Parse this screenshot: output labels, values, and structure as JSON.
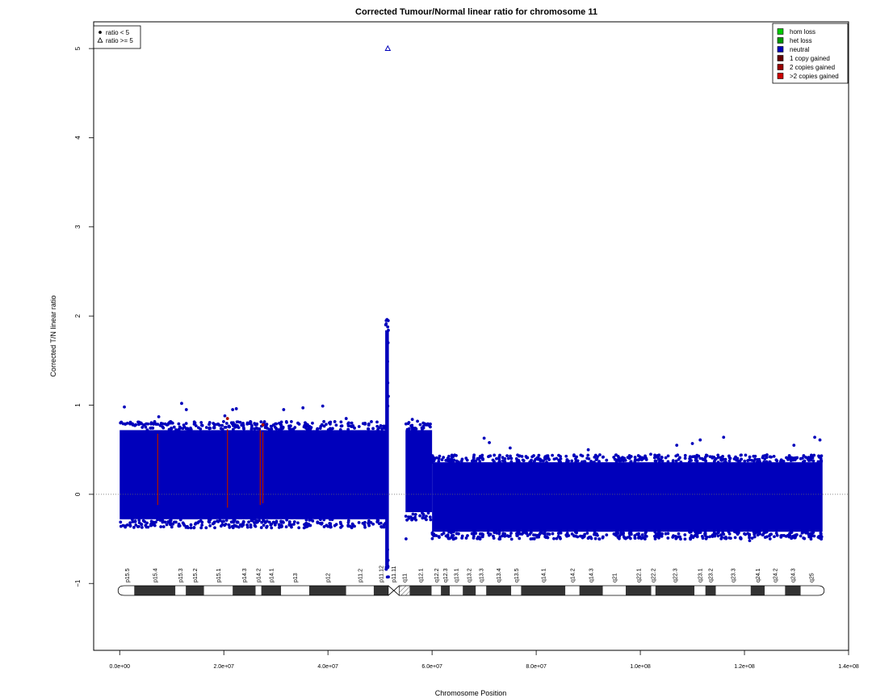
{
  "chart_data": {
    "type": "scatter",
    "title": "Corrected Tumour/Normal linear ratio for chromosome  11",
    "xlabel": "Chromosome Position",
    "ylabel": "Corrected T/N linear ratio",
    "xlim": [
      -5000000,
      140000000
    ],
    "ylim": [
      -1.75,
      5.3
    ],
    "x_ticks": [
      {
        "value": 0,
        "label": "0.0e+00"
      },
      {
        "value": 20000000,
        "label": "2.0e+07"
      },
      {
        "value": 40000000,
        "label": "4.0e+07"
      },
      {
        "value": 60000000,
        "label": "6.0e+07"
      },
      {
        "value": 80000000,
        "label": "8.0e+07"
      },
      {
        "value": 100000000,
        "label": "1.0e+08"
      },
      {
        "value": 120000000,
        "label": "1.2e+08"
      },
      {
        "value": 140000000,
        "label": "1.4e+08"
      }
    ],
    "y_ticks": [
      {
        "value": -1,
        "label": "−1"
      },
      {
        "value": 0,
        "label": "0"
      },
      {
        "value": 1,
        "label": "1"
      },
      {
        "value": 2,
        "label": "2"
      },
      {
        "value": 3,
        "label": "3"
      },
      {
        "value": 4,
        "label": "4"
      },
      {
        "value": 5,
        "label": "5"
      }
    ],
    "reference_line_y": 0,
    "shape_legend": {
      "position": "top-left",
      "entries": [
        {
          "label": "ratio < 5",
          "shape": "circle"
        },
        {
          "label": "ratio >= 5",
          "shape": "triangle"
        }
      ]
    },
    "state_legend": {
      "position": "top-right",
      "entries": [
        {
          "label": "hom loss",
          "color": "#00cc00"
        },
        {
          "label": "het loss",
          "color": "#009900"
        },
        {
          "label": "neutral",
          "color": "#0000bb"
        },
        {
          "label": "1 copy gained",
          "color": "#660000"
        },
        {
          "label": "2 copies gained",
          "color": "#990000"
        },
        {
          "label": ">2 copies gained",
          "color": "#cc0000"
        }
      ]
    },
    "series": [
      {
        "state": "neutral",
        "color": "#0000bb",
        "segments": [
          {
            "start": 0,
            "end": 51500000,
            "min": -0.28,
            "max": 0.72,
            "points": [
              [
                900000,
                0.98
              ],
              [
                11900000,
                1.02
              ],
              [
                12800000,
                0.95
              ],
              [
                20200000,
                0.88
              ],
              [
                21700000,
                0.95
              ],
              [
                22400000,
                0.96
              ],
              [
                26300000,
                0.78
              ],
              [
                31500000,
                0.95
              ],
              [
                35200000,
                0.97
              ],
              [
                39000000,
                0.99
              ],
              [
                43500000,
                0.85
              ],
              [
                7500000,
                0.87
              ],
              [
                3000000,
                -0.3
              ],
              [
                15000000,
                -0.32
              ],
              [
                40000000,
                -0.36
              ]
            ]
          },
          {
            "start": 51000000,
            "end": 51700000,
            "min": -0.8,
            "max": 1.84,
            "points": [
              [
                51600000,
                1.84
              ],
              [
                51550000,
                1.7
              ],
              [
                51450000,
                1.49
              ],
              [
                51500000,
                1.25
              ],
              [
                51600000,
                1.1
              ],
              [
                51500000,
                0.99
              ],
              [
                51450000,
                -0.62
              ],
              [
                51550000,
                -0.74
              ],
              [
                51500000,
                -0.82
              ]
            ]
          },
          {
            "start": 54900000,
            "end": 60000000,
            "min": -0.2,
            "max": 0.72,
            "points": [
              [
                56200000,
                0.84
              ],
              [
                57200000,
                0.82
              ],
              [
                58300000,
                0.8
              ],
              [
                59200000,
                0.79
              ],
              [
                55000000,
                -0.5
              ]
            ]
          },
          {
            "start": 60000000,
            "end": 135000000,
            "min": -0.42,
            "max": 0.36,
            "points": [
              [
                70000000,
                0.63
              ],
              [
                71000000,
                0.58
              ],
              [
                75000000,
                0.52
              ],
              [
                90000000,
                0.5
              ],
              [
                102000000,
                0.45
              ],
              [
                107000000,
                0.55
              ],
              [
                110000000,
                0.57
              ],
              [
                111500000,
                0.61
              ],
              [
                116000000,
                0.64
              ],
              [
                129500000,
                0.55
              ],
              [
                133500000,
                0.64
              ],
              [
                134500000,
                0.61
              ],
              [
                73000000,
                -0.5
              ],
              [
                97000000,
                -0.49
              ],
              [
                121000000,
                -0.52
              ]
            ]
          }
        ]
      },
      {
        "state": "1 copy gained",
        "color": "#aa1100",
        "columns": [
          {
            "x": 7300000,
            "min": -0.12,
            "max": 0.68
          },
          {
            "x": 20700000,
            "min": -0.15,
            "max": 0.73,
            "top": 0.85
          },
          {
            "x": 27000000,
            "min": -0.12,
            "max": 0.72
          },
          {
            "x": 27500000,
            "min": -0.1,
            "max": 0.7,
            "top": 0.78
          }
        ]
      }
    ],
    "outliers": [
      {
        "x": 51500000,
        "y": 5,
        "shape": "triangle",
        "state": "neutral"
      }
    ],
    "ideogram": {
      "centromere": 51500000,
      "bands": [
        {
          "name": "p15.5",
          "start": 0,
          "end": 2800000,
          "stain": "gneg"
        },
        {
          "name": "p15.4",
          "start": 2800000,
          "end": 10700000,
          "stain": "gpos"
        },
        {
          "name": "p15.3",
          "start": 10700000,
          "end": 12700000,
          "stain": "gneg"
        },
        {
          "name": "p15.2",
          "start": 12700000,
          "end": 16200000,
          "stain": "gpos"
        },
        {
          "name": "p15.1",
          "start": 16200000,
          "end": 21700000,
          "stain": "gneg"
        },
        {
          "name": "p14.3",
          "start": 21700000,
          "end": 26100000,
          "stain": "gpos"
        },
        {
          "name": "p14.2",
          "start": 26100000,
          "end": 27200000,
          "stain": "gneg"
        },
        {
          "name": "p14.1",
          "start": 27200000,
          "end": 31000000,
          "stain": "gpos"
        },
        {
          "name": "p13",
          "start": 31000000,
          "end": 36400000,
          "stain": "gneg"
        },
        {
          "name": "p12",
          "start": 36400000,
          "end": 43500000,
          "stain": "gpos"
        },
        {
          "name": "p11.2",
          "start": 43500000,
          "end": 48800000,
          "stain": "gneg"
        },
        {
          "name": "p11.12",
          "start": 48800000,
          "end": 51600000,
          "stain": "gpos"
        },
        {
          "name": "p11.11",
          "start": 51600000,
          "end": 53700000,
          "stain": "acen"
        },
        {
          "name": "q11",
          "start": 53700000,
          "end": 55700000,
          "stain": "gvar"
        },
        {
          "name": "q12.1",
          "start": 55700000,
          "end": 59900000,
          "stain": "gpos"
        },
        {
          "name": "q12.2",
          "start": 59900000,
          "end": 61700000,
          "stain": "gneg"
        },
        {
          "name": "q12.3",
          "start": 61700000,
          "end": 63400000,
          "stain": "gpos"
        },
        {
          "name": "q13.1",
          "start": 63400000,
          "end": 65900000,
          "stain": "gneg"
        },
        {
          "name": "q13.2",
          "start": 65900000,
          "end": 68400000,
          "stain": "gpos"
        },
        {
          "name": "q13.3",
          "start": 68400000,
          "end": 70400000,
          "stain": "gneg"
        },
        {
          "name": "q13.4",
          "start": 70400000,
          "end": 75200000,
          "stain": "gpos"
        },
        {
          "name": "q13.5",
          "start": 75200000,
          "end": 77100000,
          "stain": "gneg"
        },
        {
          "name": "q14.1",
          "start": 77100000,
          "end": 85600000,
          "stain": "gpos"
        },
        {
          "name": "q14.2",
          "start": 85600000,
          "end": 88300000,
          "stain": "gneg"
        },
        {
          "name": "q14.3",
          "start": 88300000,
          "end": 92800000,
          "stain": "gpos"
        },
        {
          "name": "q21",
          "start": 92800000,
          "end": 97200000,
          "stain": "gneg"
        },
        {
          "name": "q22.1",
          "start": 97200000,
          "end": 102100000,
          "stain": "gpos"
        },
        {
          "name": "q22.2",
          "start": 102100000,
          "end": 102900000,
          "stain": "gneg"
        },
        {
          "name": "q22.3",
          "start": 102900000,
          "end": 110400000,
          "stain": "gpos"
        },
        {
          "name": "q23.1",
          "start": 110400000,
          "end": 112500000,
          "stain": "gneg"
        },
        {
          "name": "q23.2",
          "start": 112500000,
          "end": 114500000,
          "stain": "gpos"
        },
        {
          "name": "q23.3",
          "start": 114500000,
          "end": 121200000,
          "stain": "gneg"
        },
        {
          "name": "q24.1",
          "start": 121200000,
          "end": 123900000,
          "stain": "gpos"
        },
        {
          "name": "q24.2",
          "start": 123900000,
          "end": 127800000,
          "stain": "gneg"
        },
        {
          "name": "q24.3",
          "start": 127800000,
          "end": 130800000,
          "stain": "gpos"
        },
        {
          "name": "q25",
          "start": 130800000,
          "end": 135006516,
          "stain": "gneg"
        }
      ]
    }
  }
}
